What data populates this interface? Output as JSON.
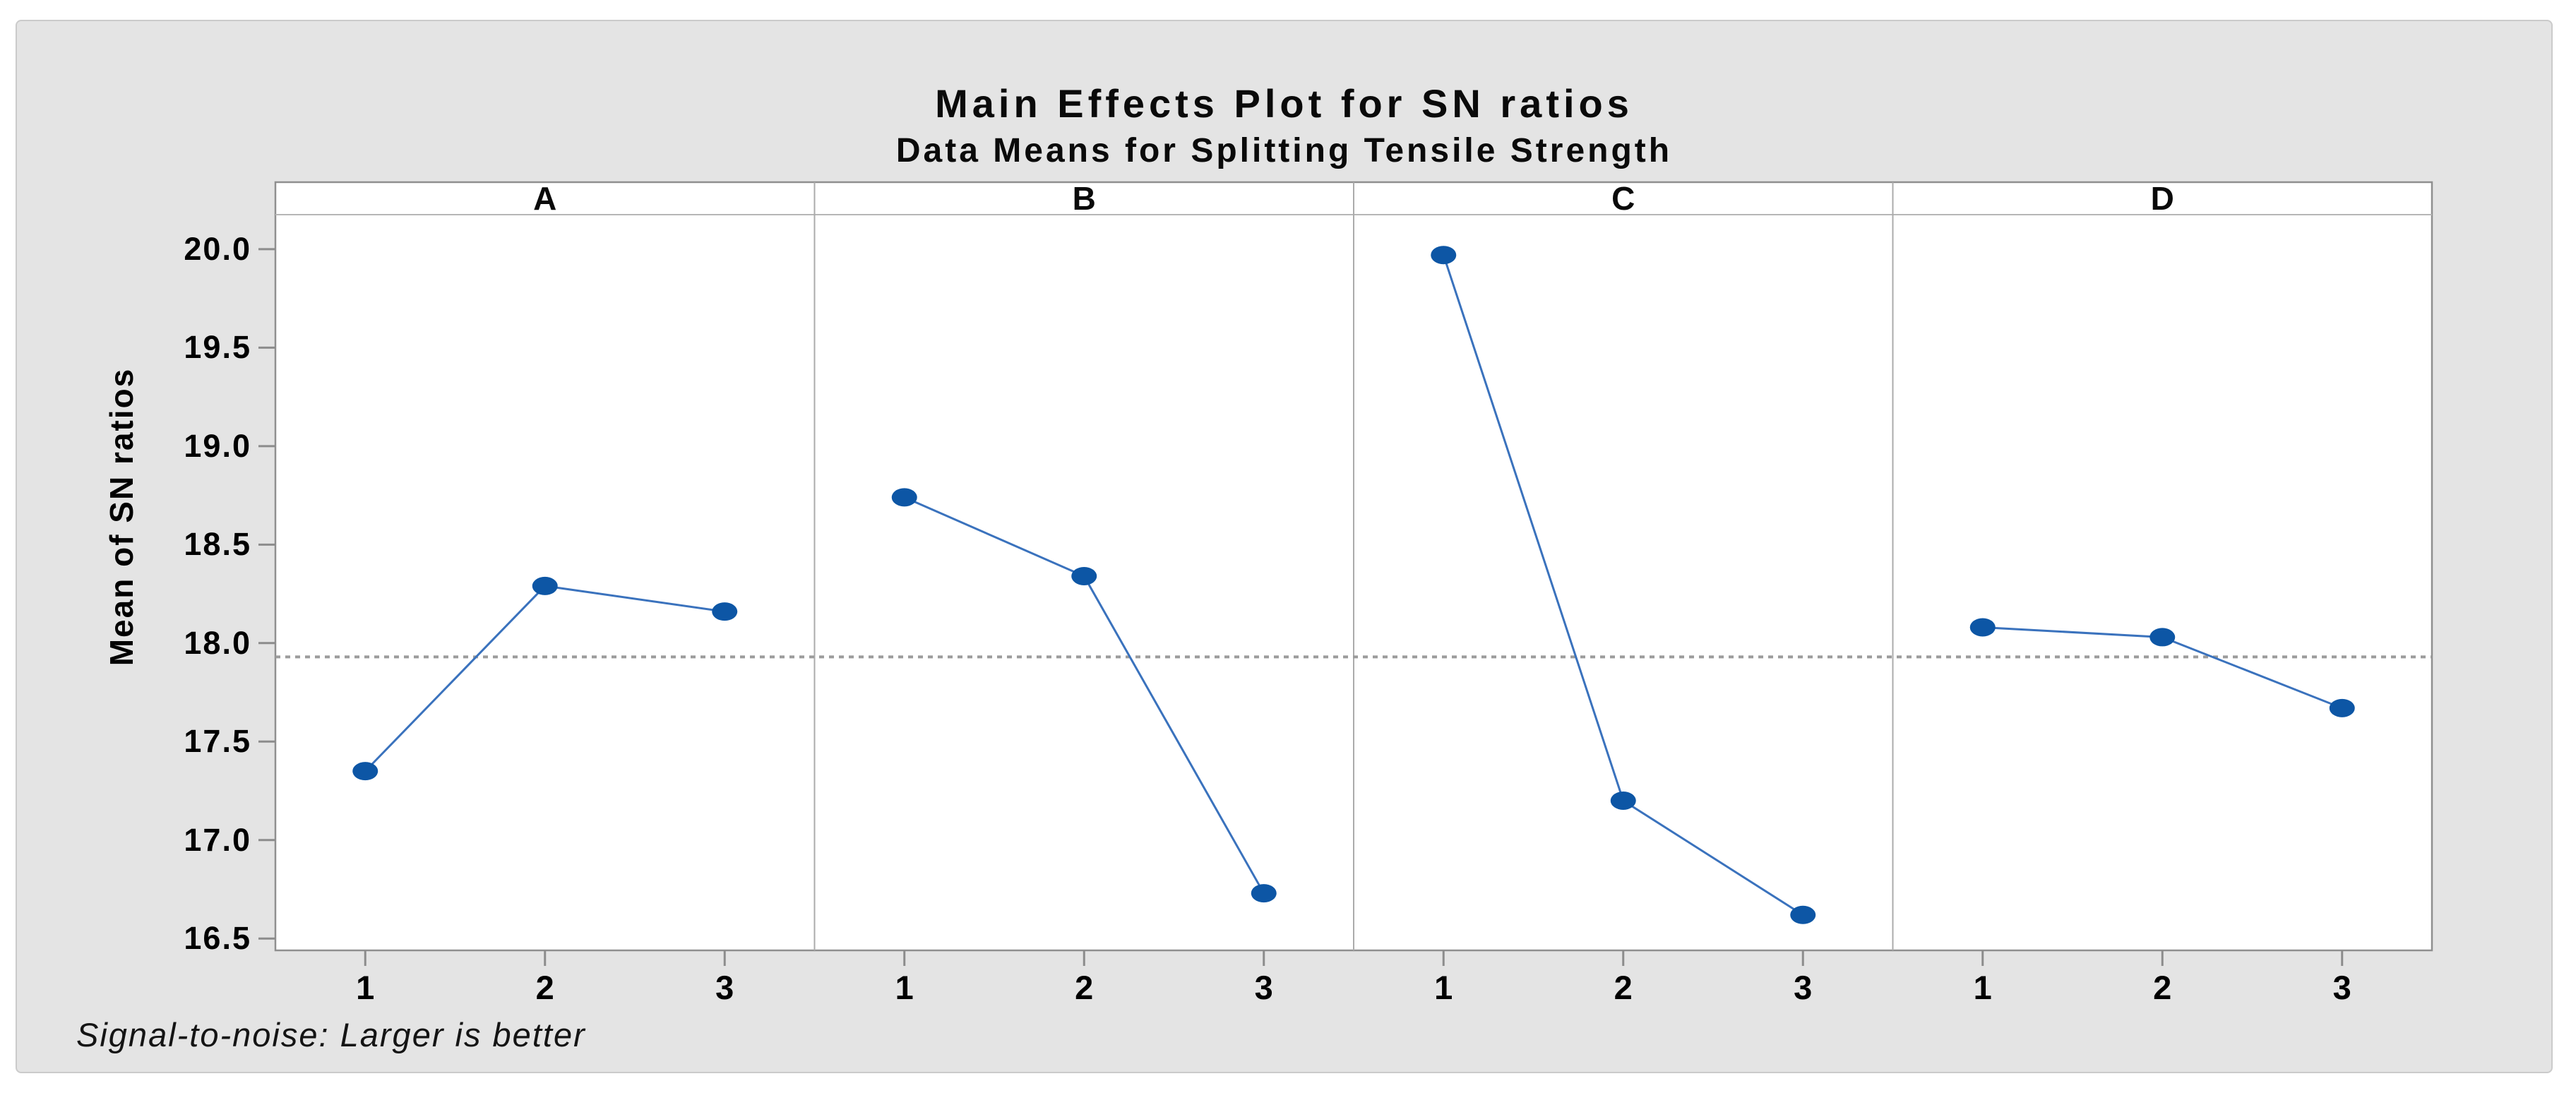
{
  "header": {
    "title": "Main Effects Plot for SN ratios",
    "subtitle": "Data Means for Splitting Tensile Strength"
  },
  "y_axis_label": "Mean of SN ratios",
  "footnote": "Signal-to-noise: Larger is better",
  "chart_data": {
    "type": "line",
    "layout": "small-multiples (Minitab main effects plot, 4 panels, shared y axis)",
    "title": "Main Effects Plot for SN ratios",
    "subtitle": "Data Means for Splitting Tensile Strength",
    "ylabel": "Mean of SN ratios",
    "x_levels": [
      "1",
      "2",
      "3"
    ],
    "panels": [
      {
        "label": "A",
        "values": [
          17.35,
          18.29,
          18.16
        ]
      },
      {
        "label": "B",
        "values": [
          18.74,
          18.34,
          16.73
        ]
      },
      {
        "label": "C",
        "values": [
          19.97,
          17.2,
          16.62
        ]
      },
      {
        "label": "D",
        "values": [
          18.08,
          18.03,
          17.67
        ]
      }
    ],
    "mean_line": 17.93,
    "ylim": [
      16.44,
      20.34
    ],
    "yticks": [
      20.0,
      19.5,
      19.0,
      18.5,
      18.0,
      17.5,
      17.0,
      16.5
    ],
    "ytick_labels": [
      "20.0",
      "19.5",
      "19.0",
      "18.5",
      "18.0",
      "17.5",
      "17.0",
      "16.5"
    ],
    "grid": "off",
    "legend": "none",
    "colors": {
      "marker": "#0d56a5",
      "line": "#3a72bd",
      "mean_line": "#9b9b9b",
      "frame": "#8f8f8f",
      "panel_divider": "#ababab",
      "tick": "#8c8c8c",
      "card_bg": "#e4e4e4",
      "plot_bg": "#ffffff",
      "text": "#0a0a0a"
    }
  }
}
